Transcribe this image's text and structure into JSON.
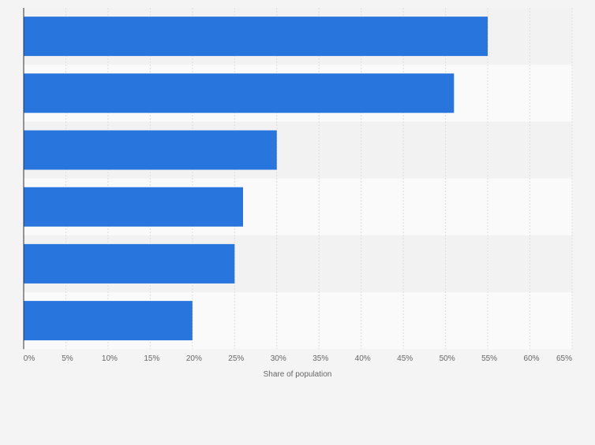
{
  "chart_data": {
    "type": "bar",
    "orientation": "horizontal",
    "categories": [
      "",
      "",
      "",
      "",
      "",
      ""
    ],
    "values": [
      55,
      51,
      30,
      26,
      25,
      20
    ],
    "title": "",
    "xlabel": "Share of population",
    "ylabel": "",
    "xlim": [
      0,
      65
    ],
    "x_ticks": [
      "0%",
      "5%",
      "10%",
      "15%",
      "20%",
      "25%",
      "30%",
      "35%",
      "40%",
      "45%",
      "50%",
      "55%",
      "60%",
      "65%"
    ],
    "grid": true,
    "bar_color": "#2876dd",
    "band_colors": [
      "#f2f2f2",
      "#fafafa"
    ],
    "background": "#f4f4f4",
    "gridline_color": "#dddddd",
    "axis_color": "#333333",
    "tick_label_color": "#666666"
  }
}
